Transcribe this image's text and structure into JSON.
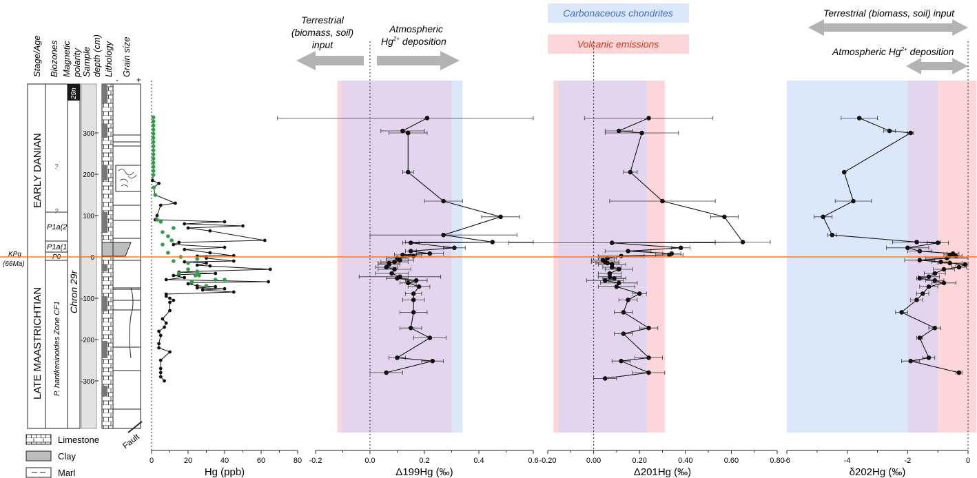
{
  "column_headers": [
    "Stage/Age",
    "Biozones",
    "Magnetic polarity",
    "Sample depth (cm)",
    "Lithology",
    "Grain size"
  ],
  "grain_minus": "-",
  "grain_plus": "+",
  "stages": {
    "upper": "EARLY DANIAN",
    "lower": "LATE MAASTRICHTIAN"
  },
  "biozones": [
    "?",
    "?",
    "P1a(2)",
    "P1a(1)",
    "P0",
    "P. hantkeninoides Zone CF1"
  ],
  "polarity": {
    "normal": "29n",
    "reversed": "Chron 29r"
  },
  "kpg_label": [
    "KPg",
    "(66Ma)"
  ],
  "fault_label": "Fault",
  "legend": {
    "limestone": "Limestone",
    "clay": "Clay",
    "marl": "Marl"
  },
  "depth_ticks": [
    "300",
    "200",
    "100",
    "0",
    "-100",
    "-200",
    "-300"
  ],
  "annotations": {
    "terrestrial_left": [
      "Terrestrial",
      "(biomass, soil)",
      "input"
    ],
    "atmospheric_left": [
      "Atmospheric",
      "Hg",
      "2+",
      "deposition"
    ],
    "carbonaceous": "Carbonaceous chondrites",
    "volcanic": "Volcanic emissions",
    "terrestrial_right": "Terrestrial (biomass, soil) input",
    "atmospheric_right": [
      "Atmospheric Hg",
      "2+",
      "deposition"
    ]
  },
  "colors": {
    "hg_highlight": "#2e9e47",
    "kpg_line": "#f07830",
    "chondrite_band": "#dbe7fb",
    "volcanic_band": "#fcd6d8",
    "overlap_band": "#e3d5ee",
    "arrow": "#b3b3b3"
  },
  "chart_data": [
    {
      "type": "scatter",
      "xlabel": "Hg (ppb)",
      "xlim": [
        0,
        80
      ],
      "ylim": [
        -340,
        345
      ],
      "x_ticks": [
        "0",
        "20",
        "40",
        "60",
        "80"
      ],
      "series": [
        {
          "x": [
            1,
            1,
            1,
            1,
            1,
            1,
            1,
            1,
            1,
            1,
            1,
            1,
            1,
            1,
            1,
            0.5,
            4,
            1.2,
            2,
            13,
            5,
            3,
            2,
            40,
            18,
            50,
            20,
            32,
            62,
            15,
            12,
            40,
            18,
            32,
            45,
            25,
            30,
            30,
            45,
            18,
            30,
            25,
            32,
            65,
            25,
            15,
            35,
            15,
            12,
            18,
            8,
            64,
            22,
            20,
            25,
            35,
            25,
            40,
            28,
            45,
            8,
            8,
            10,
            12,
            10,
            10,
            6,
            8,
            7,
            4,
            5,
            4,
            4,
            10,
            5,
            5,
            5,
            5,
            7
          ],
          "y": [
            338,
            328,
            318,
            308,
            298,
            288,
            278,
            268,
            258,
            248,
            238,
            228,
            218,
            208,
            198,
            185,
            178,
            168,
            150,
            130,
            125,
            100,
            90,
            85,
            80,
            75,
            70,
            63,
            40,
            35,
            30,
            23,
            18,
            10,
            3,
            2,
            0,
            -3,
            -10,
            -12,
            -15,
            -20,
            -22,
            -30,
            -35,
            -37,
            -40,
            -43,
            -45,
            -50,
            -55,
            -60,
            -62,
            -65,
            -70,
            -72,
            -75,
            -77,
            -80,
            -85,
            -90,
            -95,
            -100,
            -105,
            -110,
            -130,
            -150,
            -160,
            -170,
            -180,
            -190,
            -210,
            -220,
            -230,
            -250,
            -270,
            -280,
            -290,
            -300
          ]
        },
        {
          "name": "",
          "x": [
            1,
            1,
            1,
            1,
            1,
            1,
            1,
            1,
            1,
            1,
            1,
            1,
            1,
            1,
            1,
            1.2,
            2,
            3,
            5,
            12,
            6,
            9,
            11,
            6,
            9,
            16,
            12,
            20,
            25,
            22,
            30,
            15,
            20,
            25,
            24,
            26,
            40,
            35
          ],
          "y": [
            338,
            328,
            318,
            308,
            298,
            288,
            278,
            268,
            258,
            248,
            238,
            228,
            218,
            208,
            198,
            168,
            150,
            90,
            85,
            70,
            60,
            50,
            40,
            30,
            10,
            0,
            -10,
            -30,
            -35,
            -60,
            -70,
            -40,
            -15,
            -5,
            -45,
            -45,
            -55,
            -55
          ]
        }
      ]
    },
    {
      "type": "scatter",
      "xlabel": "Δ199Hg (‰)",
      "xlim": [
        -0.2,
        0.6
      ],
      "x_ticks": [
        "-0.2",
        "0.0",
        "0.2",
        "0.4",
        "0.6"
      ],
      "bands": {
        "chondrite": [
          -0.105,
          0.34
        ],
        "volcanic": [
          -0.12,
          0.3
        ]
      },
      "x": [
        0.21,
        0.12,
        0.14,
        0.14,
        0.27,
        0.48,
        0.27,
        0.45,
        0.15,
        0.31,
        0.15,
        0.22,
        0.12,
        0.16,
        0.1,
        0.11,
        0.09,
        0.07,
        0.07,
        0.06,
        0.09,
        0.08,
        0.11,
        0.1,
        0.17,
        0.14,
        0.18,
        0.16,
        0.16,
        0.16,
        0.15,
        0.22,
        0.1,
        0.23,
        0.06
      ],
      "xerr": [
        0.55,
        0.08,
        0.07,
        0.02,
        0.07,
        0.07,
        0.27,
        0.32,
        0.03,
        0.04,
        0.02,
        0.05,
        0.03,
        0.03,
        0.04,
        0.05,
        0.05,
        0.04,
        0.04,
        0.04,
        0.06,
        0.06,
        0.15,
        0.04,
        0.04,
        0.03,
        0.04,
        0.03,
        0.04,
        0.05,
        0.04,
        0.06,
        0.03,
        0.04,
        0.06
      ],
      "y": [
        336,
        305,
        300,
        205,
        135,
        97,
        53,
        36,
        34,
        22,
        14,
        8,
        5,
        2,
        -3,
        -8,
        -12,
        -15,
        -18,
        -25,
        -30,
        -40,
        -48,
        -52,
        -57,
        -63,
        -72,
        -89,
        -104,
        -134,
        -172,
        -196,
        -244,
        -252,
        -280
      ]
    },
    {
      "type": "scatter",
      "xlabel": "Δ201Hg (‰)",
      "xlim": [
        -0.2,
        0.8
      ],
      "x_ticks": [
        "-0.20",
        "0.00",
        "0.20",
        "0.40",
        "0.60",
        "0.80"
      ],
      "bands": {
        "chondrite": [
          -0.155,
          0.232
        ],
        "volcanic": [
          -0.175,
          0.31
        ]
      },
      "x": [
        0.24,
        0.11,
        0.21,
        0.16,
        0.3,
        0.57,
        0.65,
        0.08,
        0.38,
        0.15,
        0.34,
        0.33,
        0.12,
        0.06,
        0.04,
        0.05,
        0.06,
        0.08,
        0.08,
        0.11,
        0.07,
        0.07,
        0.09,
        0.05,
        0.11,
        0.1,
        0.2,
        0.15,
        0.13,
        0.24,
        0.13,
        0.24,
        0.12,
        0.24,
        0.05
      ],
      "xerr": [
        0.28,
        0.06,
        0.16,
        0.03,
        0.23,
        0.06,
        0.12,
        0.45,
        0.04,
        0.1,
        0.04,
        0.06,
        0.1,
        0.04,
        0.05,
        0.06,
        0.05,
        0.06,
        0.04,
        0.06,
        0.05,
        0.05,
        0.05,
        0.08,
        0.08,
        0.08,
        0.03,
        0.04,
        0.04,
        0.04,
        0.04,
        0.06,
        0.04,
        0.07,
        0.05
      ],
      "y": [
        336,
        305,
        300,
        205,
        135,
        97,
        36,
        34,
        22,
        14,
        8,
        5,
        2,
        -3,
        -8,
        -12,
        -15,
        -18,
        -25,
        -30,
        -40,
        -48,
        -52,
        -57,
        -63,
        -72,
        -89,
        -104,
        -134,
        -172,
        -186,
        -244,
        -252,
        -280,
        -294
      ]
    },
    {
      "type": "scatter",
      "xlabel": "δ202Hg (‰)",
      "xlim": [
        -6,
        0
      ],
      "x_ticks": [
        "-6",
        "-4",
        "-2",
        "0"
      ],
      "bands": {
        "chondrite": [
          -6,
          -1.0
        ],
        "volcanic": [
          -2.0,
          0.4
        ]
      },
      "x": [
        -3.6,
        -2.6,
        -1.9,
        -4.1,
        -3.8,
        -4.8,
        -4.5,
        -1.7,
        -1.0,
        -2.0,
        -1.6,
        -0.5,
        -0.6,
        -0.4,
        -0.7,
        -1.6,
        -0.9,
        -0.6,
        -0.1,
        -0.3,
        -0.8,
        -1.1,
        -1.3,
        -1.6,
        -1.1,
        -0.8,
        -1.3,
        -1.5,
        -1.7,
        -2.2,
        -1.1,
        -1.6,
        -1.3,
        -1.9,
        -0.3
      ],
      "xerr": [
        0.6,
        0.2,
        0.1,
        0.0,
        0.6,
        0.3,
        0.15,
        0.8,
        0.35,
        0.7,
        0.4,
        0.2,
        0.2,
        0.2,
        0.7,
        0.5,
        0.3,
        0.4,
        0.3,
        0.25,
        0.35,
        0.35,
        0.35,
        0.1,
        0.3,
        0.4,
        0.3,
        0.2,
        0.2,
        0.2,
        0.2,
        0.1,
        0.2,
        0.3,
        0.1
      ],
      "y": [
        336,
        305,
        300,
        205,
        135,
        97,
        53,
        36,
        34,
        22,
        14,
        8,
        5,
        2,
        -3,
        -8,
        -12,
        -15,
        -18,
        -25,
        -30,
        -40,
        -48,
        -52,
        -57,
        -63,
        -72,
        -89,
        -104,
        -134,
        -172,
        -196,
        -244,
        -252,
        -280
      ]
    }
  ]
}
